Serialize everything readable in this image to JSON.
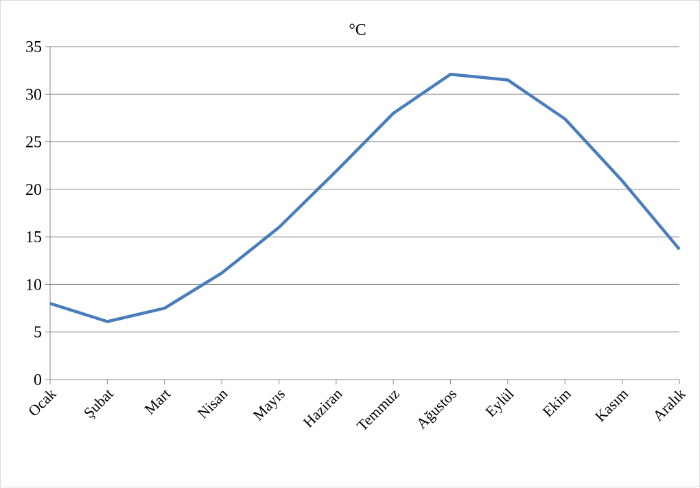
{
  "chart_data": {
    "type": "line",
    "title": "°C",
    "xlabel": "",
    "ylabel": "",
    "categories": [
      "Ocak",
      "Şubat",
      "Mart",
      "Nisan",
      "Mayıs",
      "Haziran",
      "Temmuz",
      "Ağustos",
      "Eylül",
      "Ekim",
      "Kasım",
      "Aralık"
    ],
    "series": [
      {
        "values": [
          8.0,
          6.1,
          7.5,
          11.2,
          16.0,
          21.9,
          28.0,
          32.1,
          31.5,
          27.4,
          20.9,
          13.7
        ],
        "color": "#4a7ebb"
      }
    ],
    "ylim": [
      0,
      35
    ],
    "yticks": [
      0,
      5,
      10,
      15,
      20,
      25,
      30,
      35
    ],
    "grid": true,
    "legend": "none"
  }
}
